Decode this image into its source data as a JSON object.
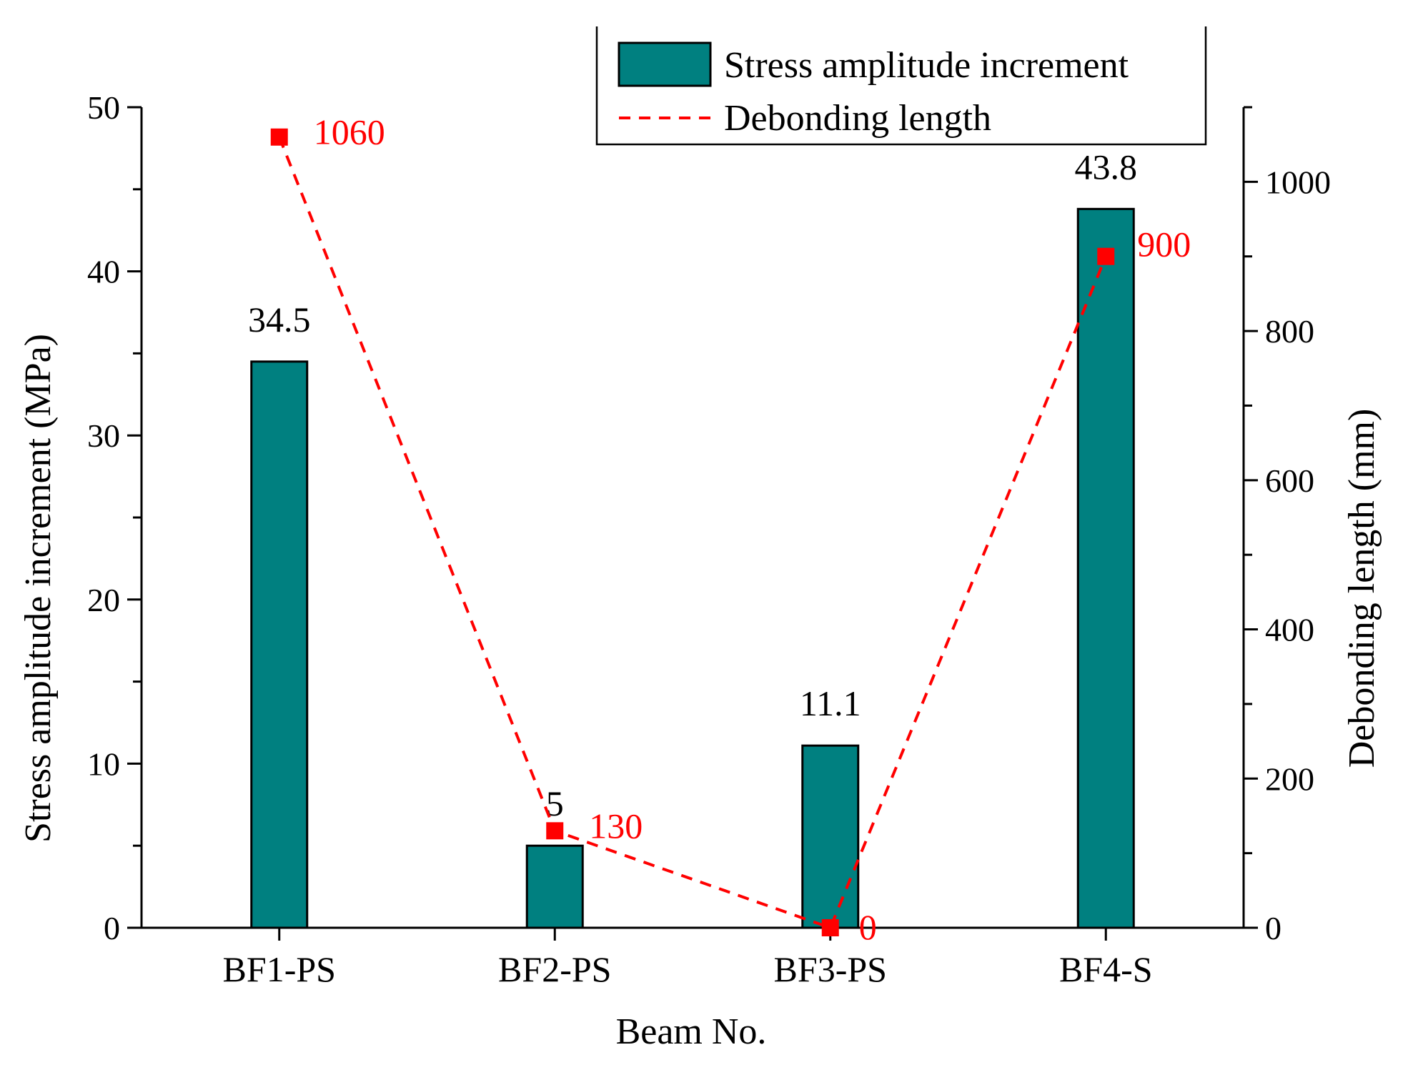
{
  "chart_data": {
    "type": "bar",
    "xlabel": "Beam No.",
    "categories": [
      "BF1-PS",
      "BF2-PS",
      "BF3-PS",
      "BF4-S"
    ],
    "series": [
      {
        "name": "Stress amplitude increment",
        "type": "bar",
        "axis": "left",
        "values": [
          34.5,
          5,
          11.1,
          43.8
        ],
        "labels": [
          "34.5",
          "5",
          "11.1",
          "43.8"
        ],
        "color": "#008080"
      },
      {
        "name": "Debonding length",
        "type": "line",
        "axis": "right",
        "line_style": "dashed",
        "marker": "square",
        "values": [
          1060,
          130,
          0,
          900
        ],
        "labels": [
          "1060",
          "130",
          "0",
          "900"
        ],
        "color": "#ff0000"
      }
    ],
    "y_left": {
      "label": "Stress amplitude increment (MPa)",
      "range": [
        0,
        50
      ],
      "ticks": [
        "0",
        "10",
        "20",
        "30",
        "40",
        "50"
      ]
    },
    "y_right": {
      "label": "Debonding length (mm)",
      "range": [
        0,
        1100
      ],
      "ticks": [
        "0",
        "200",
        "400",
        "600",
        "800",
        "1000"
      ]
    },
    "legend": {
      "position": "top-right",
      "entries": [
        "Stress amplitude increment",
        "Debonding length"
      ]
    },
    "grid": false
  }
}
